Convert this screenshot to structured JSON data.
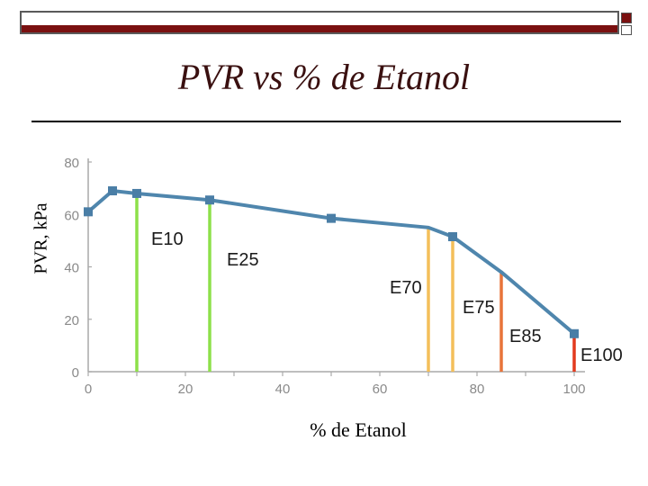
{
  "title": "PVR vs % de Etanol",
  "colors": {
    "line": "#4f86ad",
    "marker": "#4a7ea6",
    "e10": "#8ee04a",
    "e25": "#8ee04a",
    "e70": "#f4bf5a",
    "e75": "#f4bf5a",
    "e85": "#e8743a",
    "e100": "#e23a1e"
  },
  "chart_data": {
    "type": "line",
    "title": "PVR vs % de Etanol",
    "xlabel": "% de Etanol",
    "ylabel": "PVR, kPa",
    "xlim": [
      0,
      100
    ],
    "ylim": [
      0,
      80
    ],
    "xticks": [
      "0",
      "20",
      "40",
      "60",
      "80",
      "100"
    ],
    "yticks": [
      "0",
      "20",
      "40",
      "60",
      "80"
    ],
    "grid": false,
    "series": [
      {
        "x": [
          0,
          5,
          10,
          25,
          50,
          70,
          75,
          85,
          100
        ],
        "y": [
          61,
          69,
          68,
          65.5,
          58.5,
          55,
          51.5,
          38,
          14.5
        ],
        "markers": [
          0,
          5,
          10,
          25,
          50,
          75,
          100
        ]
      }
    ],
    "annotations": [
      {
        "label": "E10",
        "x": 10,
        "y": 68,
        "color": "#8ee04a"
      },
      {
        "label": "E25",
        "x": 25,
        "y": 65.5,
        "color": "#8ee04a"
      },
      {
        "label": "E70",
        "x": 70,
        "y": 55,
        "color": "#f4bf5a"
      },
      {
        "label": "E75",
        "x": 75,
        "y": 51.5,
        "color": "#f4bf5a"
      },
      {
        "label": "E85",
        "x": 85,
        "y": 38,
        "color": "#e8743a"
      },
      {
        "label": "E100",
        "x": 100,
        "y": 14.5,
        "color": "#e23a1e"
      }
    ]
  }
}
